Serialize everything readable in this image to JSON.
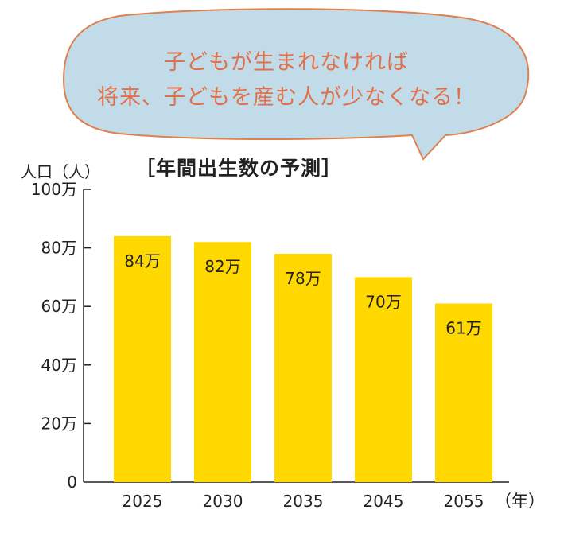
{
  "bubble": {
    "line1": "子どもが生まれなければ",
    "line2": "将来、子どもを産む人が少なくなる！",
    "fill_color": "#c2dbe8",
    "stroke_color": "#e07f4f",
    "text_color": "#e0704a"
  },
  "chart_data": {
    "type": "bar",
    "title": "［年間出生数の予測］",
    "ylabel": "人口（人）",
    "xunit": "（年）",
    "categories": [
      "2025",
      "2030",
      "2035",
      "2045",
      "2055"
    ],
    "values": [
      84,
      82,
      78,
      70,
      61
    ],
    "value_labels": [
      "84万",
      "82万",
      "78万",
      "70万",
      "61万"
    ],
    "ylim": [
      0,
      100
    ],
    "yticks": [
      0,
      20,
      40,
      60,
      80,
      100
    ],
    "ytick_labels": [
      "0",
      "20万",
      "40万",
      "60万",
      "80万",
      "100万"
    ],
    "bar_color": "#ffd800",
    "grid": false,
    "legend": "none"
  }
}
